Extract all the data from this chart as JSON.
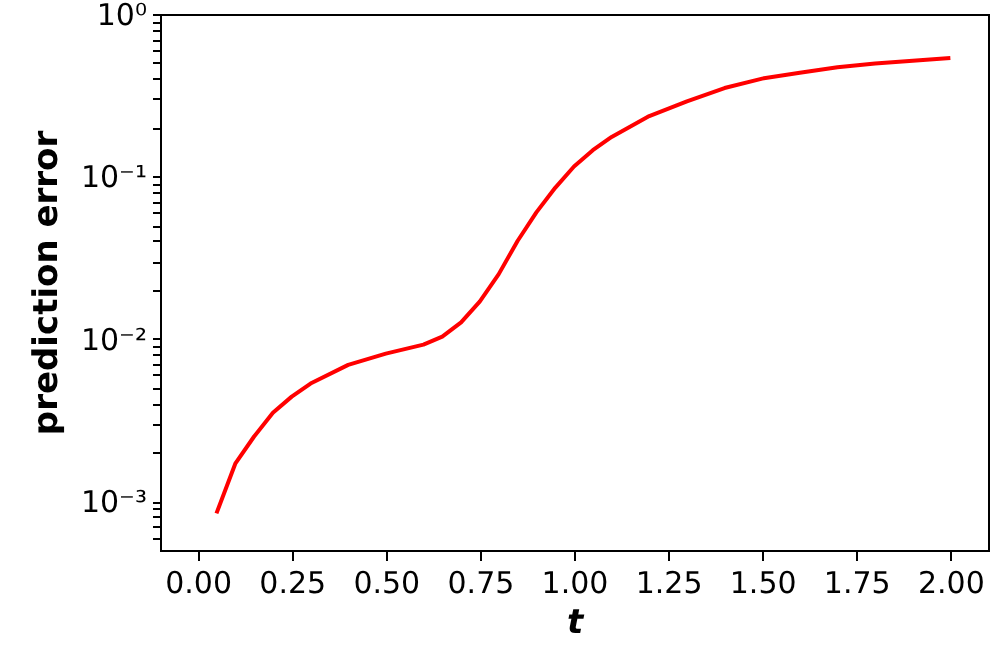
{
  "chart_data": {
    "type": "line",
    "xlabel": "t",
    "ylabel": "prediction error",
    "log": "y",
    "x": [
      0.05,
      0.1,
      0.15,
      0.2,
      0.25,
      0.3,
      0.4,
      0.5,
      0.6,
      0.65,
      0.7,
      0.75,
      0.8,
      0.85,
      0.9,
      0.95,
      1.0,
      1.05,
      1.1,
      1.2,
      1.3,
      1.4,
      1.5,
      1.6,
      1.7,
      1.8,
      1.9,
      2.0
    ],
    "series": [
      {
        "color": "#ff0000",
        "values": [
          0.00084,
          0.0017,
          0.0025,
          0.0035,
          0.0044,
          0.0053,
          0.0069,
          0.0081,
          0.0092,
          0.0103,
          0.0126,
          0.017,
          0.025,
          0.04,
          0.06,
          0.085,
          0.115,
          0.145,
          0.175,
          0.235,
          0.29,
          0.35,
          0.4,
          0.435,
          0.47,
          0.495,
          0.515,
          0.535
        ]
      }
    ],
    "xlim": [
      -0.1,
      2.1
    ],
    "ylim": [
      0.0005,
      1
    ],
    "xticks": [
      {
        "value": 0,
        "label": "0.00"
      },
      {
        "value": 0.25,
        "label": "0.25"
      },
      {
        "value": 0.5,
        "label": "0.50"
      },
      {
        "value": 0.75,
        "label": "0.75"
      },
      {
        "value": 1,
        "label": "1.00"
      },
      {
        "value": 1.25,
        "label": "1.25"
      },
      {
        "value": 1.5,
        "label": "1.50"
      },
      {
        "value": 1.75,
        "label": "1.75"
      },
      {
        "value": 2,
        "label": "2.00"
      }
    ],
    "yticks": [
      {
        "value": 0.0006,
        "label": null
      },
      {
        "value": 0.0007,
        "label": null
      },
      {
        "value": 0.0008,
        "label": null
      },
      {
        "value": 0.0009,
        "label": null
      },
      {
        "value": 0.001,
        "label": "10⁻³"
      },
      {
        "value": 0.002,
        "label": null
      },
      {
        "value": 0.003,
        "label": null
      },
      {
        "value": 0.004,
        "label": null
      },
      {
        "value": 0.005,
        "label": null
      },
      {
        "value": 0.006,
        "label": null
      },
      {
        "value": 0.007,
        "label": null
      },
      {
        "value": 0.008,
        "label": null
      },
      {
        "value": 0.009,
        "label": null
      },
      {
        "value": 0.01,
        "label": "10⁻²"
      },
      {
        "value": 0.02,
        "label": null
      },
      {
        "value": 0.03,
        "label": null
      },
      {
        "value": 0.04,
        "label": null
      },
      {
        "value": 0.05,
        "label": null
      },
      {
        "value": 0.06,
        "label": null
      },
      {
        "value": 0.07,
        "label": null
      },
      {
        "value": 0.08,
        "label": null
      },
      {
        "value": 0.09,
        "label": null
      },
      {
        "value": 0.1,
        "label": "10⁻¹"
      },
      {
        "value": 0.2,
        "label": null
      },
      {
        "value": 0.3,
        "label": null
      },
      {
        "value": 0.4,
        "label": null
      },
      {
        "value": 0.5,
        "label": null
      },
      {
        "value": 0.6,
        "label": null
      },
      {
        "value": 0.7,
        "label": null
      },
      {
        "value": 0.8,
        "label": null
      },
      {
        "value": 0.9,
        "label": null
      },
      {
        "value": 1,
        "label": "10⁰"
      }
    ]
  }
}
